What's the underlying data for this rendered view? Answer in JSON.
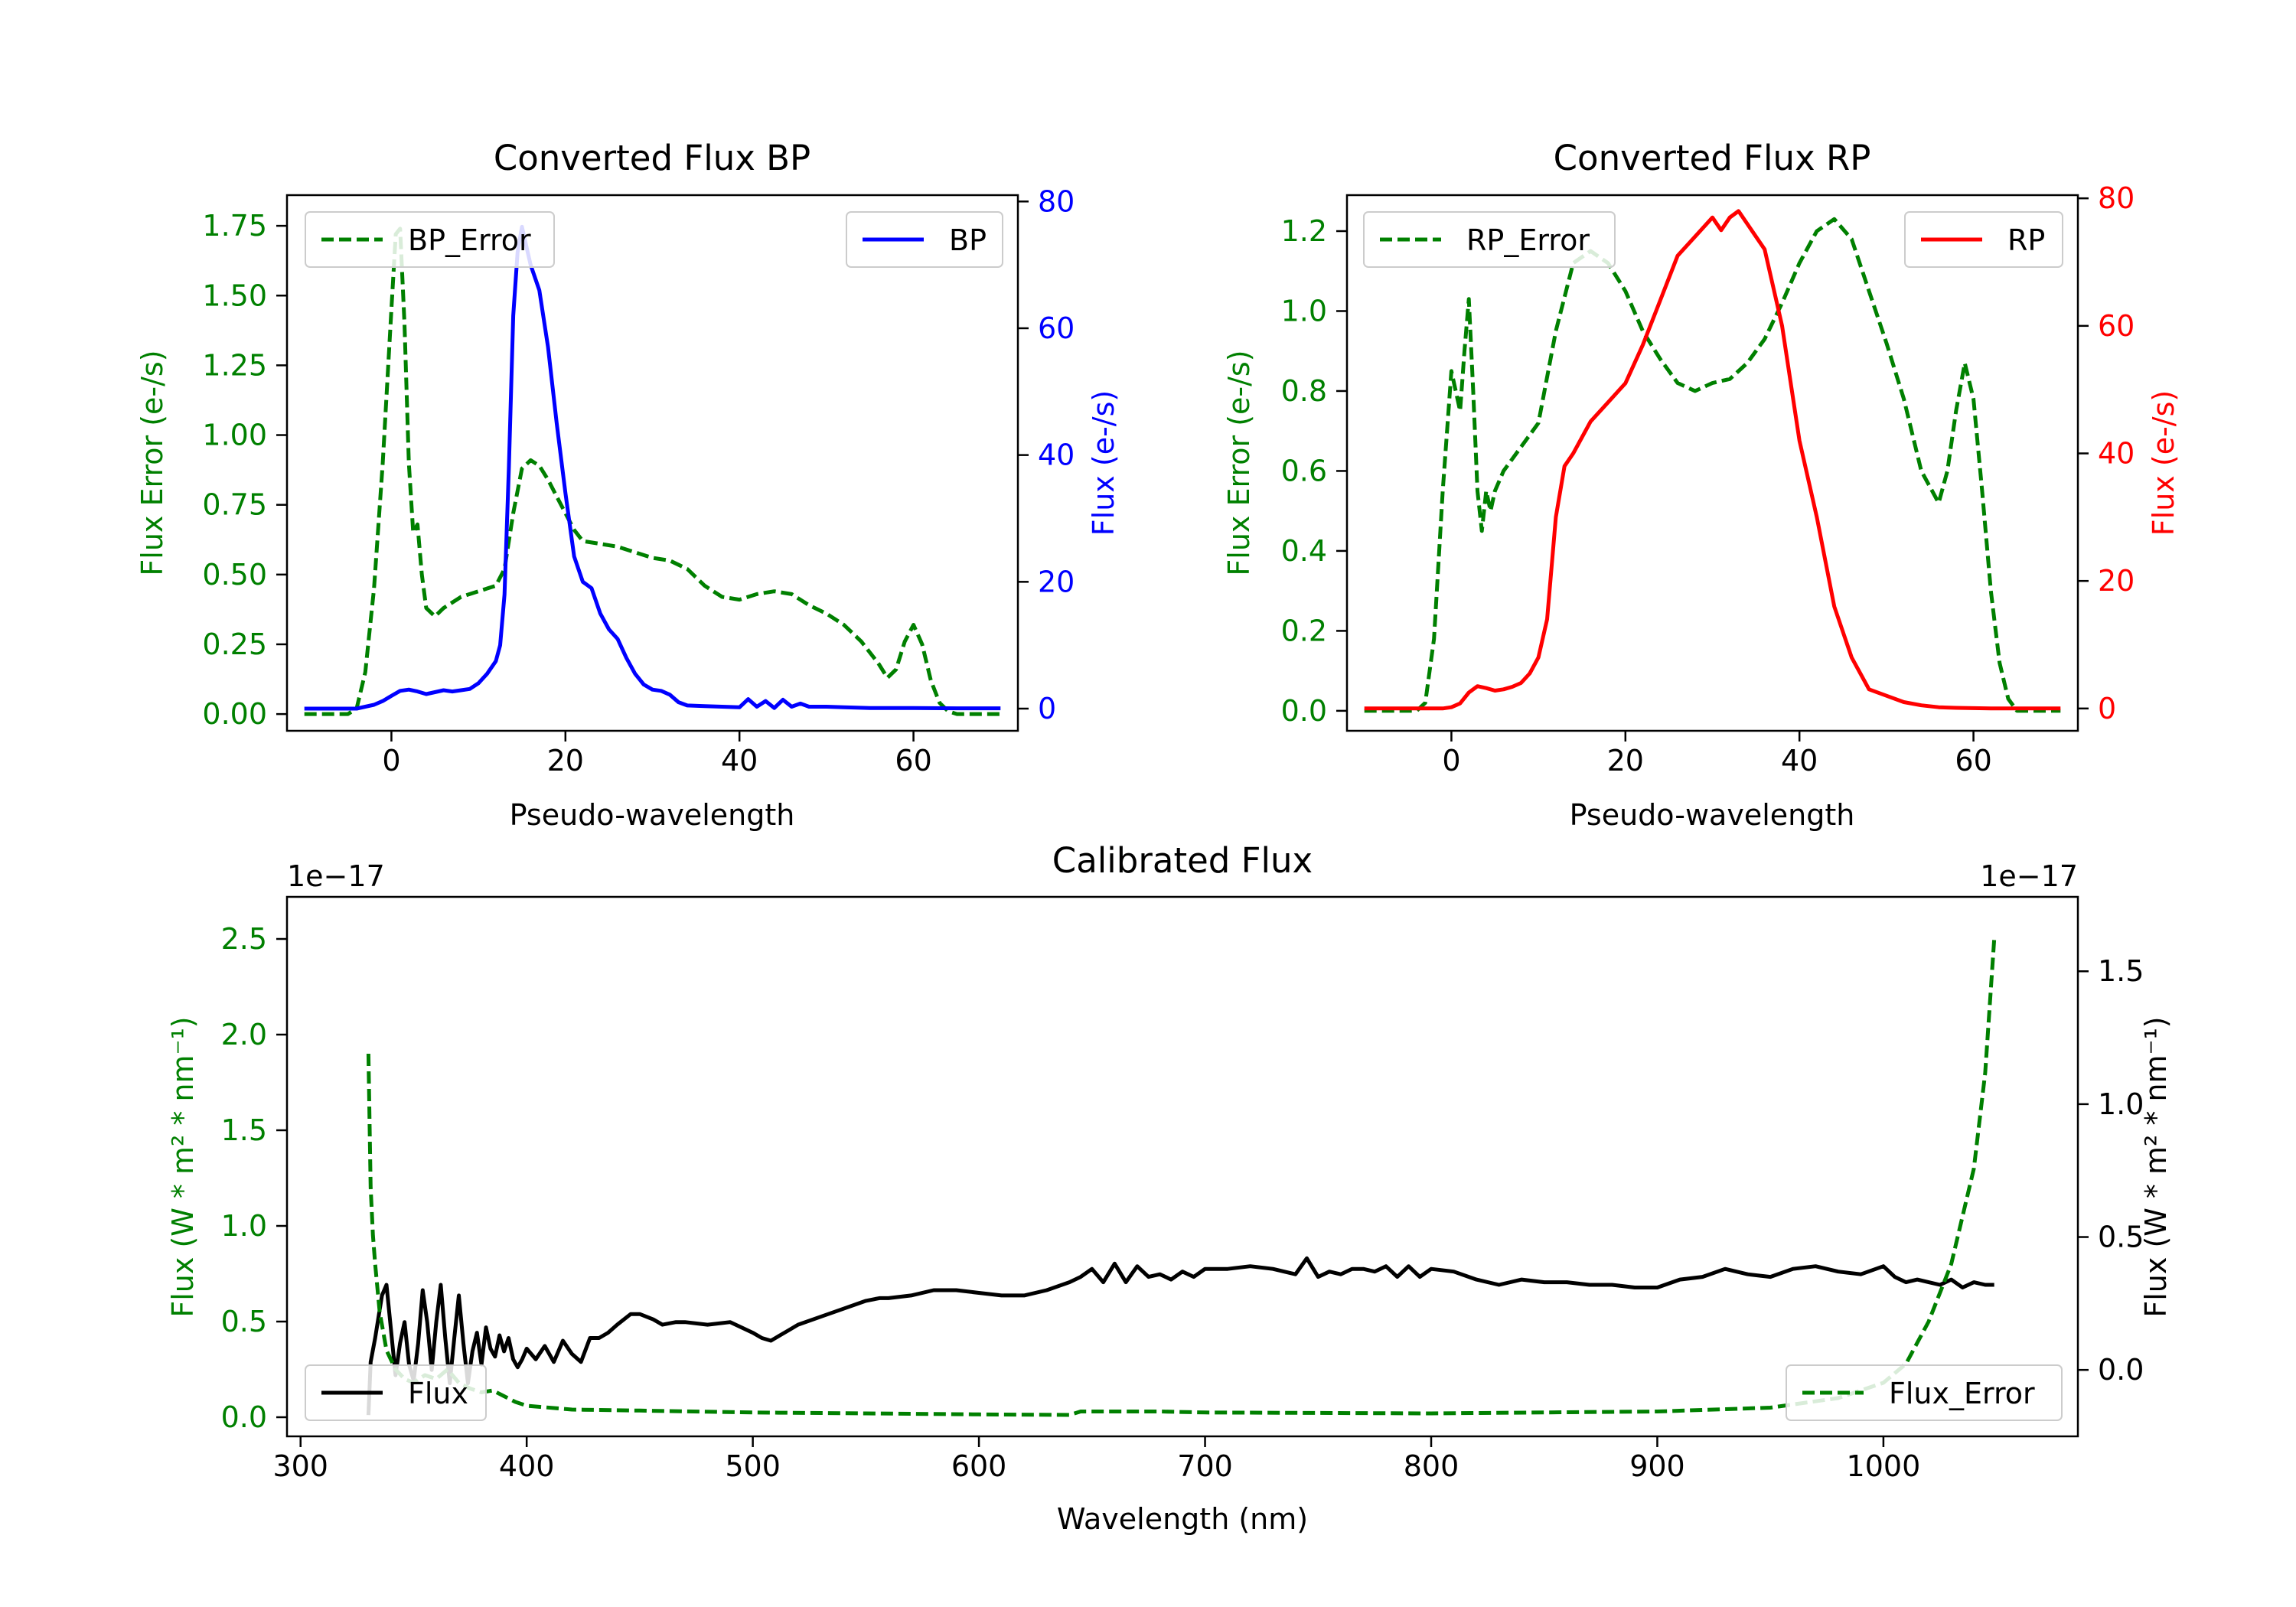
{
  "figure": {
    "background": "#ffffff"
  },
  "chart_data": [
    {
      "id": "bp",
      "type": "line",
      "title": "Converted Flux BP",
      "xlabel": "Pseudo-wavelength",
      "xlim": [
        -12,
        72
      ],
      "xticks": [
        0,
        20,
        40,
        60
      ],
      "xticklabels": [
        "0",
        "20",
        "40",
        "60"
      ],
      "left_axis": {
        "label": "Flux Error (e-/s)",
        "color": "#008000",
        "ylim": [
          -0.06,
          1.86
        ],
        "ticks": [
          0,
          0.25,
          0.5,
          0.75,
          1.0,
          1.25,
          1.5,
          1.75
        ],
        "ticklabels": [
          "0.00",
          "0.25",
          "0.50",
          "0.75",
          "1.00",
          "1.25",
          "1.50",
          "1.75"
        ]
      },
      "right_axis": {
        "label": "Flux (e-/s)",
        "color": "#0000ff",
        "ylim": [
          -3.5,
          81
        ],
        "ticks": [
          0,
          20,
          40,
          60,
          80
        ],
        "ticklabels": [
          "0",
          "20",
          "40",
          "60",
          "80"
        ]
      },
      "series": [
        {
          "name": "BP_Error",
          "axis": "left",
          "color": "#008000",
          "dashed": true,
          "x": [
            -10,
            -5,
            -4,
            -3,
            -2,
            -1,
            0,
            0.5,
            1,
            1.5,
            2,
            2.5,
            3,
            3.5,
            4,
            5,
            6,
            8,
            10,
            12,
            13,
            14,
            15,
            16,
            17,
            18,
            19,
            20,
            21,
            22,
            24,
            26,
            28,
            30,
            32,
            34,
            36,
            38,
            40,
            42,
            44,
            46,
            48,
            50,
            52,
            54,
            56,
            57,
            58,
            59,
            60,
            61,
            62,
            63,
            64,
            65,
            66,
            70
          ],
          "values": [
            0,
            0,
            0.02,
            0.15,
            0.45,
            0.9,
            1.45,
            1.72,
            1.74,
            1.4,
            0.9,
            0.65,
            0.68,
            0.5,
            0.38,
            0.35,
            0.38,
            0.42,
            0.44,
            0.46,
            0.52,
            0.72,
            0.88,
            0.91,
            0.89,
            0.84,
            0.78,
            0.72,
            0.66,
            0.62,
            0.61,
            0.6,
            0.58,
            0.56,
            0.55,
            0.52,
            0.46,
            0.42,
            0.41,
            0.43,
            0.44,
            0.43,
            0.39,
            0.36,
            0.32,
            0.26,
            0.18,
            0.13,
            0.16,
            0.26,
            0.32,
            0.25,
            0.12,
            0.04,
            0.01,
            0,
            0,
            0
          ]
        },
        {
          "name": "BP",
          "axis": "right",
          "color": "#0000ff",
          "dashed": false,
          "x": [
            -10,
            -4,
            -3,
            -2,
            -1,
            0,
            1,
            2,
            3,
            4,
            5,
            6,
            7,
            8,
            9,
            10,
            11,
            12,
            12.5,
            13,
            13.5,
            14,
            14.5,
            15,
            15.5,
            16,
            17,
            18,
            19,
            20,
            21,
            22,
            23,
            24,
            25,
            26,
            27,
            28,
            29,
            30,
            31,
            32,
            33,
            34,
            36,
            38,
            40,
            41,
            42,
            43,
            44,
            45,
            46,
            47,
            48,
            50,
            52,
            55,
            60,
            65,
            70
          ],
          "values": [
            0,
            0,
            0.3,
            0.6,
            1.2,
            2,
            2.8,
            3,
            2.7,
            2.3,
            2.6,
            2.9,
            2.7,
            2.9,
            3.1,
            4,
            5.5,
            7.5,
            10,
            18,
            38,
            62,
            72,
            76,
            73,
            70,
            66,
            57,
            45,
            34,
            24,
            20,
            19,
            15,
            12.5,
            11,
            8,
            5.5,
            3.8,
            3,
            2.8,
            2.2,
            1,
            0.5,
            0.4,
            0.3,
            0.2,
            1.5,
            0.3,
            1.2,
            0.1,
            1.4,
            0.3,
            0.8,
            0.3,
            0.3,
            0.2,
            0.1,
            0.1,
            0.05,
            0.05
          ]
        }
      ],
      "legends": [
        {
          "label": "BP_Error",
          "position": "upper-left"
        },
        {
          "label": "BP",
          "position": "upper-right"
        }
      ]
    },
    {
      "id": "rp",
      "type": "line",
      "title": "Converted Flux RP",
      "xlabel": "Pseudo-wavelength",
      "xlim": [
        -12,
        72
      ],
      "xticks": [
        0,
        20,
        40,
        60
      ],
      "xticklabels": [
        "0",
        "20",
        "40",
        "60"
      ],
      "left_axis": {
        "label": "Flux Error (e-/s)",
        "color": "#008000",
        "ylim": [
          -0.05,
          1.29
        ],
        "ticks": [
          0,
          0.2,
          0.4,
          0.6,
          0.8,
          1.0,
          1.2
        ],
        "ticklabels": [
          "0.0",
          "0.2",
          "0.4",
          "0.6",
          "0.8",
          "1.0",
          "1.2"
        ]
      },
      "right_axis": {
        "label": "Flux (e-/s)",
        "color": "#ff0000",
        "ylim": [
          -3.5,
          80.5
        ],
        "ticks": [
          0,
          20,
          40,
          60,
          80
        ],
        "ticklabels": [
          "0",
          "20",
          "40",
          "60",
          "80"
        ]
      },
      "series": [
        {
          "name": "RP_Error",
          "axis": "left",
          "color": "#008000",
          "dashed": true,
          "x": [
            -10,
            -4,
            -3,
            -2,
            -1,
            0,
            0.5,
            1,
            1.5,
            2,
            2.5,
            3,
            3.5,
            4,
            4.5,
            5,
            6,
            8,
            10,
            12,
            14,
            16,
            18,
            20,
            22,
            24,
            26,
            28,
            30,
            32,
            33,
            34,
            36,
            38,
            40,
            42,
            44,
            46,
            48,
            50,
            52,
            54,
            56,
            57,
            58,
            59,
            60,
            61,
            62,
            63,
            64,
            65,
            70
          ],
          "values": [
            0,
            0,
            0.02,
            0.18,
            0.55,
            0.85,
            0.8,
            0.75,
            0.9,
            1.03,
            0.8,
            0.55,
            0.45,
            0.55,
            0.5,
            0.55,
            0.6,
            0.66,
            0.72,
            0.95,
            1.12,
            1.15,
            1.12,
            1.05,
            0.95,
            0.88,
            0.82,
            0.8,
            0.82,
            0.83,
            0.85,
            0.87,
            0.93,
            1.02,
            1.12,
            1.2,
            1.23,
            1.18,
            1.05,
            0.92,
            0.78,
            0.6,
            0.52,
            0.6,
            0.75,
            0.87,
            0.78,
            0.55,
            0.3,
            0.12,
            0.03,
            0,
            0
          ]
        },
        {
          "name": "RP",
          "axis": "right",
          "color": "#ff0000",
          "dashed": false,
          "x": [
            -10,
            -1,
            0,
            1,
            2,
            3,
            4,
            5,
            6,
            7,
            8,
            9,
            10,
            11,
            12,
            13,
            14,
            16,
            18,
            20,
            22,
            24,
            26,
            28,
            30,
            31,
            32,
            33,
            34,
            36,
            38,
            40,
            42,
            44,
            46,
            48,
            50,
            52,
            54,
            56,
            58,
            60,
            62,
            64,
            70
          ],
          "values": [
            0,
            0,
            0.2,
            0.8,
            2.5,
            3.5,
            3.2,
            2.8,
            3,
            3.4,
            4,
            5.5,
            8,
            14,
            30,
            38,
            40,
            45,
            48,
            51,
            57,
            64,
            71,
            74,
            77,
            75,
            77,
            78,
            76,
            72,
            60,
            42,
            30,
            16,
            8,
            3,
            2,
            1,
            0.5,
            0.2,
            0.1,
            0.05,
            0,
            0,
            0
          ]
        }
      ],
      "legends": [
        {
          "label": "RP_Error",
          "position": "upper-left"
        },
        {
          "label": "RP",
          "position": "upper-right"
        }
      ]
    },
    {
      "id": "cal",
      "type": "line",
      "title": "Calibrated Flux",
      "xlabel": "Wavelength (nm)",
      "xlim": [
        294,
        1086
      ],
      "xticks": [
        300,
        400,
        500,
        600,
        700,
        800,
        900,
        1000
      ],
      "xticklabels": [
        "300",
        "400",
        "500",
        "600",
        "700",
        "800",
        "900",
        "1000"
      ],
      "left_axis": {
        "label": "Flux (W * m² * nm⁻¹)",
        "color": "#008000",
        "offset_text": "1e−17",
        "ylim": [
          -0.1,
          2.72
        ],
        "ticks": [
          0,
          0.5,
          1.0,
          1.5,
          2.0,
          2.5
        ],
        "ticklabels": [
          "0.0",
          "0.5",
          "1.0",
          "1.5",
          "2.0",
          "2.5"
        ]
      },
      "right_axis": {
        "label": "Flux (W * m² * nm⁻¹)",
        "color": "#000000",
        "offset_text": "1e−17",
        "ylim": [
          -0.25,
          1.78
        ],
        "ticks": [
          0,
          0.5,
          1.0,
          1.5
        ],
        "ticklabels": [
          "0.0",
          "0.5",
          "1.0",
          "1.5"
        ]
      },
      "series": [
        {
          "name": "Flux",
          "axis": "right",
          "color": "#000000",
          "dashed": false,
          "x": [
            330,
            331,
            333,
            336,
            338,
            340,
            342,
            344,
            346,
            348,
            350,
            352,
            354,
            356,
            358,
            360,
            362,
            364,
            366,
            368,
            370,
            372,
            374,
            376,
            378,
            380,
            382,
            384,
            386,
            388,
            390,
            392,
            394,
            396,
            398,
            400,
            404,
            408,
            412,
            416,
            420,
            424,
            428,
            432,
            436,
            440,
            446,
            450,
            456,
            460,
            466,
            470,
            480,
            490,
            500,
            504,
            508,
            512,
            516,
            520,
            530,
            540,
            550,
            556,
            560,
            570,
            580,
            590,
            600,
            610,
            620,
            630,
            640,
            645,
            650,
            655,
            660,
            665,
            670,
            675,
            680,
            685,
            690,
            695,
            700,
            710,
            720,
            730,
            740,
            745,
            750,
            755,
            760,
            765,
            770,
            775,
            780,
            785,
            790,
            795,
            800,
            810,
            820,
            830,
            840,
            850,
            860,
            870,
            880,
            890,
            900,
            910,
            920,
            930,
            940,
            950,
            960,
            970,
            980,
            990,
            1000,
            1005,
            1010,
            1015,
            1020,
            1025,
            1030,
            1035,
            1040,
            1045,
            1049
          ],
          "values": [
            -0.17,
            0.03,
            0.12,
            0.28,
            0.32,
            0.15,
            -0.02,
            0.1,
            0.18,
            0.02,
            -0.04,
            0.1,
            0.3,
            0.18,
            0,
            0.18,
            0.32,
            0.12,
            -0.05,
            0.12,
            0.28,
            0.1,
            -0.05,
            0.07,
            0.14,
            0.02,
            0.16,
            0.08,
            0.05,
            0.13,
            0.07,
            0.12,
            0.04,
            0.01,
            0.04,
            0.08,
            0.04,
            0.09,
            0.03,
            0.11,
            0.06,
            0.03,
            0.12,
            0.12,
            0.14,
            0.17,
            0.21,
            0.21,
            0.19,
            0.17,
            0.18,
            0.18,
            0.17,
            0.18,
            0.14,
            0.12,
            0.11,
            0.13,
            0.15,
            0.17,
            0.2,
            0.23,
            0.26,
            0.27,
            0.27,
            0.28,
            0.3,
            0.3,
            0.29,
            0.28,
            0.28,
            0.3,
            0.33,
            0.35,
            0.38,
            0.33,
            0.4,
            0.33,
            0.39,
            0.35,
            0.36,
            0.34,
            0.37,
            0.35,
            0.38,
            0.38,
            0.39,
            0.38,
            0.36,
            0.42,
            0.35,
            0.37,
            0.36,
            0.38,
            0.38,
            0.37,
            0.39,
            0.35,
            0.39,
            0.35,
            0.38,
            0.37,
            0.34,
            0.32,
            0.34,
            0.33,
            0.33,
            0.32,
            0.32,
            0.31,
            0.31,
            0.34,
            0.35,
            0.38,
            0.36,
            0.35,
            0.38,
            0.39,
            0.37,
            0.36,
            0.39,
            0.35,
            0.33,
            0.34,
            0.33,
            0.32,
            0.34,
            0.31,
            0.33,
            0.32,
            0.32
          ]
        },
        {
          "name": "Flux_Error",
          "axis": "left",
          "color": "#008000",
          "dashed": true,
          "x": [
            330,
            331,
            332,
            333,
            335,
            338,
            342,
            346,
            350,
            355,
            360,
            365,
            370,
            375,
            380,
            385,
            390,
            395,
            400,
            420,
            450,
            500,
            550,
            600,
            640,
            645,
            680,
            700,
            800,
            900,
            950,
            980,
            1000,
            1010,
            1020,
            1030,
            1040,
            1045,
            1049
          ],
          "values": [
            1.9,
            1.2,
            0.95,
            0.8,
            0.55,
            0.35,
            0.25,
            0.2,
            0.18,
            0.22,
            0.2,
            0.25,
            0.18,
            0.15,
            0.13,
            0.14,
            0.11,
            0.08,
            0.06,
            0.04,
            0.035,
            0.025,
            0.02,
            0.015,
            0.012,
            0.03,
            0.03,
            0.025,
            0.02,
            0.03,
            0.05,
            0.1,
            0.18,
            0.28,
            0.5,
            0.8,
            1.3,
            1.8,
            2.5
          ]
        }
      ],
      "legends": [
        {
          "label": "Flux",
          "position": "lower-left"
        },
        {
          "label": "Flux_Error",
          "position": "lower-right"
        }
      ]
    }
  ]
}
